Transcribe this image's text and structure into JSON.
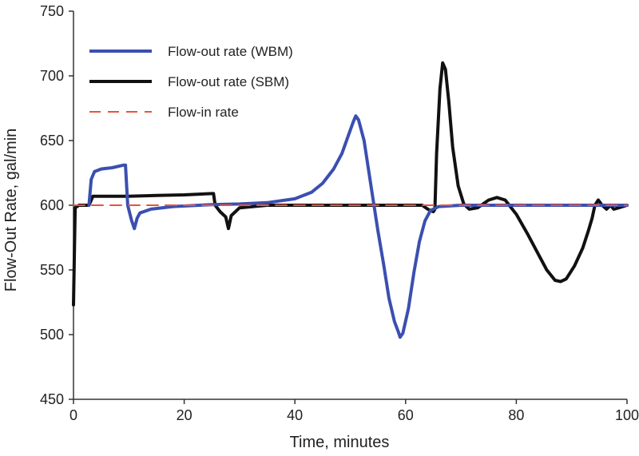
{
  "chart_data": {
    "type": "line",
    "title": "",
    "xlabel": "Time, minutes",
    "ylabel": "Flow-Out Rate, gal/min",
    "xlim": [
      0,
      100
    ],
    "ylim": [
      450,
      750
    ],
    "x_ticks": [
      0,
      20,
      40,
      60,
      80,
      100
    ],
    "y_ticks": [
      450,
      500,
      550,
      600,
      650,
      700,
      750
    ],
    "grid": false,
    "legend_position": "top-left",
    "series": [
      {
        "name": "Flow-out rate (WBM)",
        "color": "#3b4fb0",
        "style": "solid",
        "points": [
          [
            2.8,
            600
          ],
          [
            3.2,
            620
          ],
          [
            3.8,
            626
          ],
          [
            5,
            628
          ],
          [
            7,
            629
          ],
          [
            9,
            631
          ],
          [
            9.4,
            631
          ],
          [
            9.8,
            600
          ],
          [
            10.5,
            588
          ],
          [
            11,
            582
          ],
          [
            11.5,
            590
          ],
          [
            12,
            594
          ],
          [
            14,
            597
          ],
          [
            18,
            599
          ],
          [
            25,
            600.5
          ],
          [
            30,
            601
          ],
          [
            35,
            602
          ],
          [
            40,
            605
          ],
          [
            43,
            610
          ],
          [
            45,
            617
          ],
          [
            47,
            628
          ],
          [
            48.5,
            640
          ],
          [
            49.5,
            652
          ],
          [
            50.5,
            664
          ],
          [
            51,
            669
          ],
          [
            51.5,
            666
          ],
          [
            52.5,
            650
          ],
          [
            54,
            608
          ],
          [
            55,
            580
          ],
          [
            56,
            555
          ],
          [
            57,
            528
          ],
          [
            58,
            510
          ],
          [
            58.7,
            502
          ],
          [
            59,
            498
          ],
          [
            59.5,
            501
          ],
          [
            60.5,
            520
          ],
          [
            61.5,
            548
          ],
          [
            62.5,
            572
          ],
          [
            63.5,
            588
          ],
          [
            64.5,
            596
          ],
          [
            66,
            599
          ],
          [
            70,
            600
          ],
          [
            80,
            600
          ],
          [
            100,
            600
          ]
        ]
      },
      {
        "name": "Flow-out rate (SBM)",
        "color": "#111111",
        "style": "solid",
        "points": [
          [
            0,
            523
          ],
          [
            0.3,
            598
          ],
          [
            1,
            600
          ],
          [
            2.8,
            600
          ],
          [
            3.5,
            607
          ],
          [
            5,
            607
          ],
          [
            10,
            607
          ],
          [
            15,
            607.5
          ],
          [
            20,
            608
          ],
          [
            25,
            609
          ],
          [
            25.3,
            609
          ],
          [
            25.6,
            600
          ],
          [
            26.5,
            595
          ],
          [
            27.5,
            591
          ],
          [
            28,
            582
          ],
          [
            28.5,
            592
          ],
          [
            30,
            598
          ],
          [
            35,
            600
          ],
          [
            40,
            600
          ],
          [
            50,
            600
          ],
          [
            60,
            600
          ],
          [
            63,
            600
          ],
          [
            64,
            597
          ],
          [
            65,
            595
          ],
          [
            65.3,
            597
          ],
          [
            65.6,
            640
          ],
          [
            66.2,
            690
          ],
          [
            66.7,
            710
          ],
          [
            67.2,
            705
          ],
          [
            67.8,
            680
          ],
          [
            68.5,
            645
          ],
          [
            69.5,
            615
          ],
          [
            70.5,
            601
          ],
          [
            71.5,
            597
          ],
          [
            73,
            598
          ],
          [
            75,
            604
          ],
          [
            76.5,
            606
          ],
          [
            78,
            604
          ],
          [
            80,
            593
          ],
          [
            82,
            578
          ],
          [
            84,
            562
          ],
          [
            85.5,
            550
          ],
          [
            87,
            542
          ],
          [
            88,
            541
          ],
          [
            89,
            543
          ],
          [
            90.5,
            553
          ],
          [
            92,
            567
          ],
          [
            93,
            580
          ],
          [
            93.7,
            590
          ],
          [
            94.2,
            600
          ],
          [
            94.8,
            604
          ],
          [
            95.5,
            600
          ],
          [
            96.3,
            597
          ],
          [
            97,
            600
          ],
          [
            97.6,
            597
          ],
          [
            98.5,
            598
          ],
          [
            100,
            600
          ]
        ]
      },
      {
        "name": "Flow-in rate",
        "color": "#e8533a",
        "style": "dashed",
        "points": [
          [
            0,
            600
          ],
          [
            100,
            600
          ]
        ]
      }
    ]
  }
}
